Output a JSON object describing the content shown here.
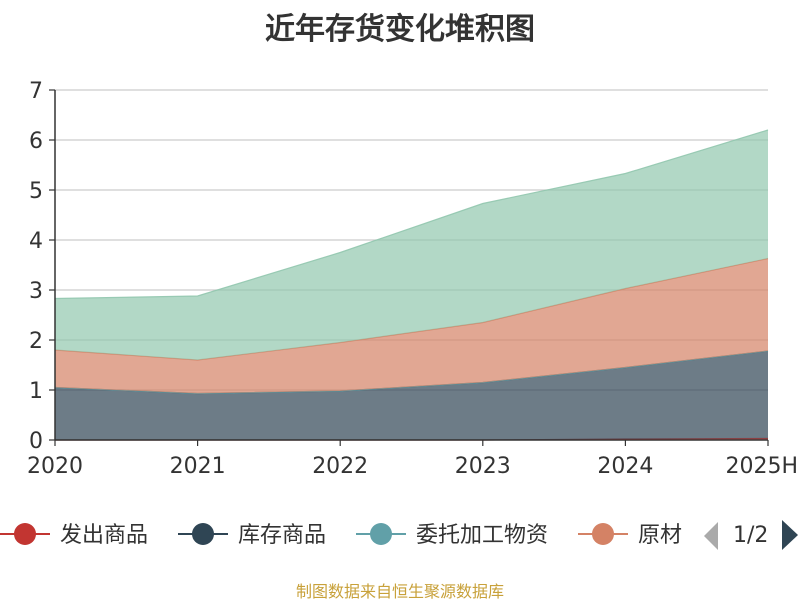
{
  "chart_data": {
    "type": "area",
    "stacked": true,
    "title": "近年存货变化堆积图",
    "x": [
      "2020",
      "2021",
      "2022",
      "2023",
      "2024",
      "2025H"
    ],
    "ylim": [
      0,
      7
    ],
    "yticks": [
      0,
      1,
      2,
      3,
      4,
      5,
      6,
      7
    ],
    "grid": true,
    "legend_position": "bottom",
    "series": [
      {
        "name": "发出商品",
        "color": "#c23531",
        "values": [
          0.0,
          0.0,
          0.0,
          0.0,
          0.02,
          0.03
        ]
      },
      {
        "name": "库存商品",
        "color": "#2f4554",
        "values": [
          1.05,
          0.93,
          0.98,
          1.15,
          1.43,
          1.75
        ]
      },
      {
        "name": "委托加工物资",
        "color": "#61a0a8",
        "values": [
          0.0,
          0.0,
          0.0,
          0.0,
          0.0,
          0.0
        ]
      },
      {
        "name": "原材料",
        "color": "#d48265",
        "values": [
          0.75,
          0.67,
          0.97,
          1.2,
          1.58,
          1.85
        ]
      },
      {
        "name": "",
        "color": "#91c7ae",
        "values": [
          1.03,
          1.28,
          1.8,
          2.38,
          2.3,
          2.57
        ]
      }
    ]
  },
  "legend": {
    "visible_items": [
      "发出商品",
      "库存商品",
      "委托加工物资",
      "原材"
    ],
    "page": "1/2"
  },
  "source_note": "制图数据来自恒生聚源数据库"
}
